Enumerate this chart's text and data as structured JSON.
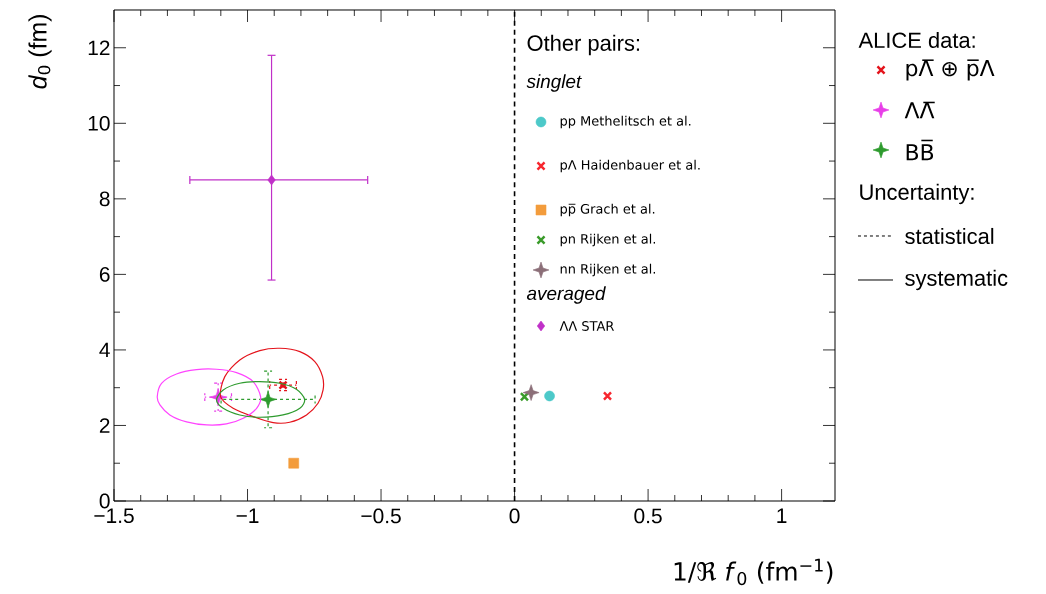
{
  "chart_data": {
    "type": "scatter",
    "xlabel": "1/ℜ *f*$_{0}$ (fm$^{−1}$)",
    "ylabel": "*d*$_{0}$ (fm)",
    "legend_title": "ALICE data:",
    "xlim": [
      -1.5,
      1.2
    ],
    "ylim": [
      0,
      13
    ],
    "xticks": [
      {
        "value": -1.5,
        "label": "−1.5"
      },
      {
        "value": -1,
        "label": "−1"
      },
      {
        "value": -0.5,
        "label": "−0.5"
      },
      0,
      0.5,
      1
    ],
    "yticks": [
      0,
      2,
      4,
      6,
      8,
      10,
      12
    ],
    "grid": false,
    "legend": "right",
    "ref_lines": [
      {
        "axis": "x",
        "value": 0,
        "color": "#000000",
        "line_style": "dashed"
      }
    ],
    "annotations": [
      "Other pairs:",
      "singlet",
      "averaged",
      "Uncertainty:",
      "statistical",
      "systematic"
    ],
    "series": [
      {
        "name": "pΛ̅ ⊕ p̅Λ",
        "type": "scatter",
        "marker": "cross",
        "color": "#e4141c",
        "line_style": "dashed",
        "x": [
          -0.867
        ],
        "values": [
          3.07
        ],
        "xerrors": [
          0.05
        ],
        "errors": [
          0.15
        ]
      },
      {
        "name": "ΛΛ̅",
        "type": "scatter",
        "marker": "star",
        "color": "#e83ee8",
        "line_style": "dashed",
        "x": [
          -1.11
        ],
        "values": [
          2.75
        ],
        "xerrors": [
          0.05
        ],
        "errors": [
          0.37
        ]
      },
      {
        "name": "BB̅",
        "type": "scatter",
        "marker": "star",
        "color": "#2e9b2e",
        "line_style": "dashed",
        "x": [
          -0.923
        ],
        "values": [
          2.69
        ],
        "xerrors": [
          0.176
        ],
        "errors": [
          0.75
        ]
      },
      {
        "name": "pp Methelitsch et al.",
        "type": "scatter",
        "marker": "circle",
        "color": "#4dc9c9",
        "x": [
          0.131
        ],
        "values": [
          2.78
        ]
      },
      {
        "name": "pΛ Haidenbauer et al.",
        "type": "scatter",
        "marker": "cross",
        "color": "#f7262e",
        "x": [
          0.348
        ],
        "values": [
          2.78
        ]
      },
      {
        "name": "pp̅ Grach et al.",
        "type": "scatter",
        "marker": "square",
        "color": "#f39c3c",
        "x": [
          -0.827
        ],
        "values": [
          1.0
        ]
      },
      {
        "name": "pn Rijken et al.",
        "type": "scatter",
        "marker": "cross",
        "color": "#3a9b2a",
        "x": [
          0.037
        ],
        "values": [
          2.76
        ]
      },
      {
        "name": "nn Rijken et al.",
        "type": "scatter",
        "marker": "star",
        "color": "#8c6f78",
        "x": [
          0.062
        ],
        "values": [
          2.87
        ]
      },
      {
        "name": "ΛΛ STAR",
        "type": "scatter",
        "marker": "diamond",
        "color": "#c030c8",
        "x": [
          -0.91
        ],
        "values": [
          8.5
        ],
        "xerrors": [
          [
            -1.216,
            -0.55
          ]
        ],
        "errors": [
          [
            5.85,
            11.8
          ]
        ]
      }
    ]
  }
}
